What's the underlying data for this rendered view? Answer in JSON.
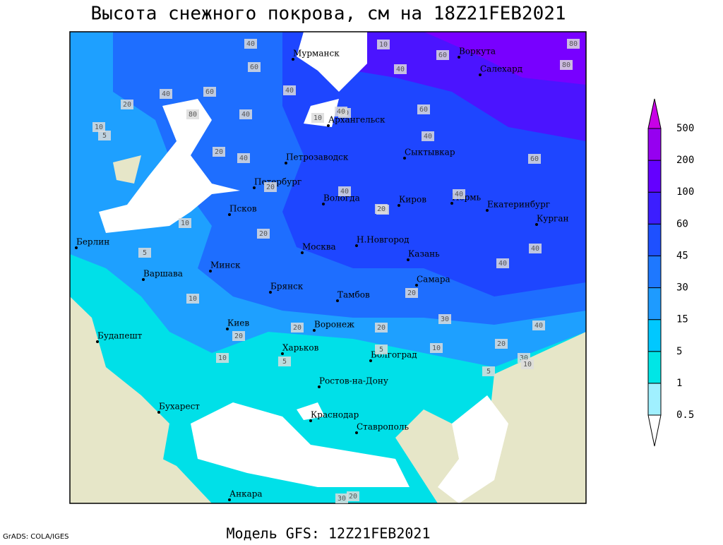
{
  "header": {
    "title": "Высота снежного покрова, см на 18Z21FEB2021"
  },
  "map": {
    "cities": [
      "Мурманск",
      "Воркута",
      "Салехард",
      "Архангельск",
      "Петрозаводск",
      "Сыктывкар",
      "Петербург",
      "Вологда",
      "Киров",
      "Пермь",
      "Екатеринбург",
      "Курган",
      "Псков",
      "Москва",
      "Н.Новгород",
      "Казань",
      "Берлин",
      "Варшава",
      "Минск",
      "Брянск",
      "Тамбов",
      "Самара",
      "Киев",
      "Воронеж",
      "Будапешт",
      "Харьков",
      "Волгоград",
      "Ростов-на-Дону",
      "Бухарест",
      "Краснодар",
      "Ставрополь",
      "Анкара"
    ],
    "contour_labels": [
      40,
      10,
      60,
      80,
      60,
      80,
      40,
      60,
      20,
      40,
      80,
      20,
      10,
      5,
      40,
      40,
      40,
      60,
      20,
      10,
      40,
      60,
      40,
      20,
      40,
      40,
      40,
      20,
      10,
      5,
      20,
      40,
      40,
      20,
      10,
      20,
      30,
      40,
      20,
      20,
      10,
      5,
      10,
      5,
      20,
      30,
      10,
      20,
      5,
      30
    ]
  },
  "legend": {
    "levels": [
      {
        "value": 0.5,
        "color": "#a0f0ff"
      },
      {
        "value": 1,
        "color": "#00e6e6"
      },
      {
        "value": 5,
        "color": "#00c8ff"
      },
      {
        "value": 15,
        "color": "#1e9bff"
      },
      {
        "value": 30,
        "color": "#1e78ff"
      },
      {
        "value": 45,
        "color": "#1e50ff"
      },
      {
        "value": 60,
        "color": "#3c1eff"
      },
      {
        "value": 100,
        "color": "#6400ff"
      },
      {
        "value": 200,
        "color": "#9600f0"
      },
      {
        "value": 500,
        "color": "#c800e6"
      }
    ]
  },
  "footer": {
    "model": "Модель GFS: 12Z21FEB2021",
    "credit": "GrADS: COLA/IGES"
  }
}
